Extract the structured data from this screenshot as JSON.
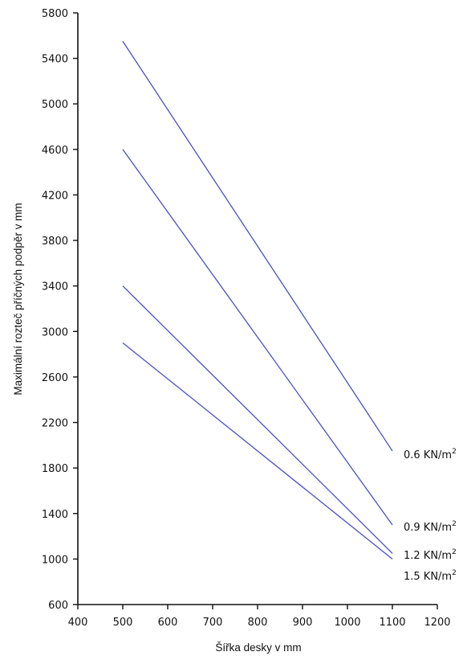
{
  "chart_data": {
    "type": "line",
    "xlabel": "Šířka desky v mm",
    "ylabel": "Maximální rozteč příčných podpěr v mm",
    "xlim": [
      400,
      1200
    ],
    "ylim": [
      600,
      5800
    ],
    "xticks": [
      400,
      500,
      600,
      700,
      800,
      900,
      1000,
      1100,
      1200
    ],
    "yticks": [
      600,
      1000,
      1400,
      1800,
      2200,
      2600,
      3000,
      3400,
      3800,
      4200,
      4600,
      5000,
      5400,
      5800
    ],
    "grid": false,
    "line_color": "#4a4fc4",
    "series": [
      {
        "name": "0.6 KN/m",
        "sup": "2",
        "x": [
          500,
          1100
        ],
        "y": [
          5550,
          1950
        ]
      },
      {
        "name": "0.9 KN/m",
        "sup": "2",
        "x": [
          500,
          1100
        ],
        "y": [
          4600,
          1300
        ]
      },
      {
        "name": "1.2 KN/m",
        "sup": "2",
        "x": [
          500,
          1100
        ],
        "y": [
          3400,
          1050
        ]
      },
      {
        "name": "1.5 KN/m",
        "sup": "2",
        "x": [
          500,
          1100
        ],
        "y": [
          2900,
          1000
        ]
      }
    ]
  }
}
